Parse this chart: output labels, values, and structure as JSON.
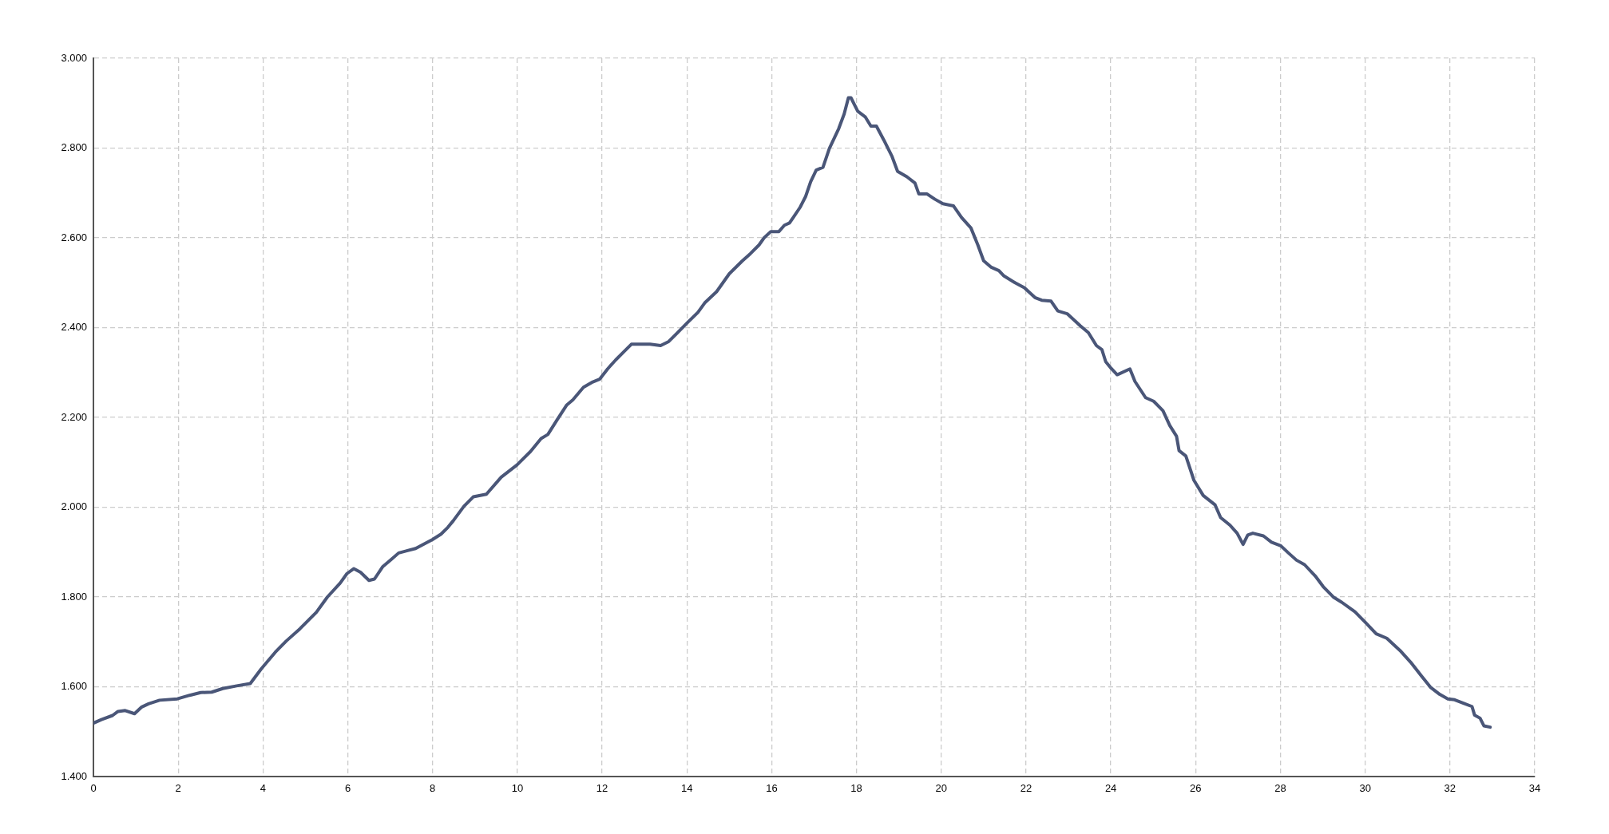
{
  "chart_data": {
    "type": "line",
    "color": "#4a5678",
    "marker": "none",
    "line_style": "solid",
    "grid": true,
    "xlim": [
      0,
      34
    ],
    "xticks": [
      0,
      2,
      4,
      6,
      8,
      10,
      12,
      14,
      16,
      18,
      20,
      22,
      24,
      26,
      28,
      30,
      32,
      34
    ],
    "ylim": [
      1400,
      3000
    ],
    "yticks": [
      {
        "value": 1400,
        "label": "1.400"
      },
      {
        "value": 1600,
        "label": "1.600"
      },
      {
        "value": 1800,
        "label": "1.800"
      },
      {
        "value": 2000,
        "label": "2.000"
      },
      {
        "value": 2200,
        "label": "2.200"
      },
      {
        "value": 2400,
        "label": "2.400"
      },
      {
        "value": 2600,
        "label": "2.600"
      },
      {
        "value": 2800,
        "label": "2.800"
      },
      {
        "value": 3000,
        "label": "3.000"
      }
    ],
    "x": [
      0,
      0.19,
      0.45,
      0.58,
      0.75,
      0.97,
      1.14,
      1.3,
      1.56,
      1.98,
      2.27,
      2.53,
      2.79,
      3.05,
      3.38,
      3.7,
      3.96,
      4.29,
      4.55,
      4.87,
      5.26,
      5.52,
      5.82,
      5.98,
      6.14,
      6.3,
      6.5,
      6.63,
      6.82,
      7.02,
      7.2,
      7.6,
      8.0,
      8.2,
      8.36,
      8.49,
      8.74,
      8.96,
      9.27,
      9.62,
      9.99,
      10.31,
      10.56,
      10.72,
      10.94,
      11.16,
      11.31,
      11.56,
      11.78,
      11.94,
      12.13,
      12.32,
      12.51,
      12.69,
      13.13,
      13.38,
      13.57,
      13.76,
      14.01,
      14.26,
      14.42,
      14.7,
      15.0,
      15.3,
      15.5,
      15.7,
      15.82,
      15.98,
      16.17,
      16.3,
      16.42,
      16.52,
      16.67,
      16.8,
      16.92,
      17.05,
      17.21,
      17.36,
      17.58,
      17.71,
      17.81,
      17.87,
      18.03,
      18.21,
      18.34,
      18.47,
      18.65,
      18.84,
      18.97,
      19.19,
      19.38,
      19.47,
      19.66,
      19.85,
      20.04,
      20.29,
      20.48,
      20.7,
      20.86,
      21.0,
      21.17,
      21.36,
      21.48,
      21.74,
      21.96,
      22.21,
      22.37,
      22.59,
      22.75,
      22.97,
      23.28,
      23.47,
      23.66,
      23.79,
      23.88,
      24.01,
      24.15,
      24.45,
      24.57,
      24.82,
      25.01,
      25.23,
      25.39,
      25.55,
      25.61,
      25.77,
      25.96,
      26.18,
      26.46,
      26.59,
      26.81,
      26.98,
      27.12,
      27.23,
      27.35,
      27.6,
      27.79,
      28.01,
      28.19,
      28.38,
      28.57,
      28.82,
      29.01,
      29.26,
      29.45,
      29.76,
      30.01,
      30.26,
      30.51,
      30.82,
      31.07,
      31.32,
      31.54,
      31.76,
      31.95,
      32.11,
      32.33,
      32.52,
      32.58,
      32.71,
      32.8,
      32.95
    ],
    "values": [
      1519,
      1527,
      1536,
      1545,
      1547,
      1540,
      1555,
      1562,
      1570,
      1573,
      1581,
      1587,
      1588,
      1596,
      1602,
      1607,
      1640,
      1677,
      1702,
      1729,
      1766,
      1800,
      1831,
      1852,
      1863,
      1855,
      1837,
      1840,
      1867,
      1883,
      1898,
      1908,
      1928,
      1940,
      1955,
      1970,
      2002,
      2023,
      2029,
      2067,
      2094,
      2124,
      2153,
      2162,
      2195,
      2227,
      2239,
      2267,
      2279,
      2285,
      2308,
      2328,
      2346,
      2363,
      2363,
      2360,
      2369,
      2387,
      2411,
      2434,
      2455,
      2480,
      2520,
      2548,
      2565,
      2584,
      2600,
      2614,
      2614,
      2628,
      2633,
      2647,
      2668,
      2692,
      2725,
      2751,
      2757,
      2799,
      2843,
      2876,
      2912,
      2912,
      2882,
      2869,
      2849,
      2849,
      2817,
      2781,
      2748,
      2736,
      2722,
      2698,
      2698,
      2686,
      2676,
      2671,
      2645,
      2622,
      2585,
      2549,
      2535,
      2527,
      2515,
      2500,
      2489,
      2467,
      2461,
      2459,
      2437,
      2431,
      2404,
      2389,
      2360,
      2351,
      2324,
      2309,
      2295,
      2308,
      2280,
      2244,
      2236,
      2215,
      2182,
      2158,
      2126,
      2114,
      2060,
      2026,
      2005,
      1977,
      1960,
      1942,
      1917,
      1938,
      1942,
      1936,
      1922,
      1914,
      1898,
      1882,
      1872,
      1847,
      1823,
      1799,
      1788,
      1767,
      1743,
      1718,
      1708,
      1681,
      1655,
      1625,
      1599,
      1583,
      1573,
      1571,
      1563,
      1556,
      1537,
      1530,
      1513,
      1510
    ]
  }
}
